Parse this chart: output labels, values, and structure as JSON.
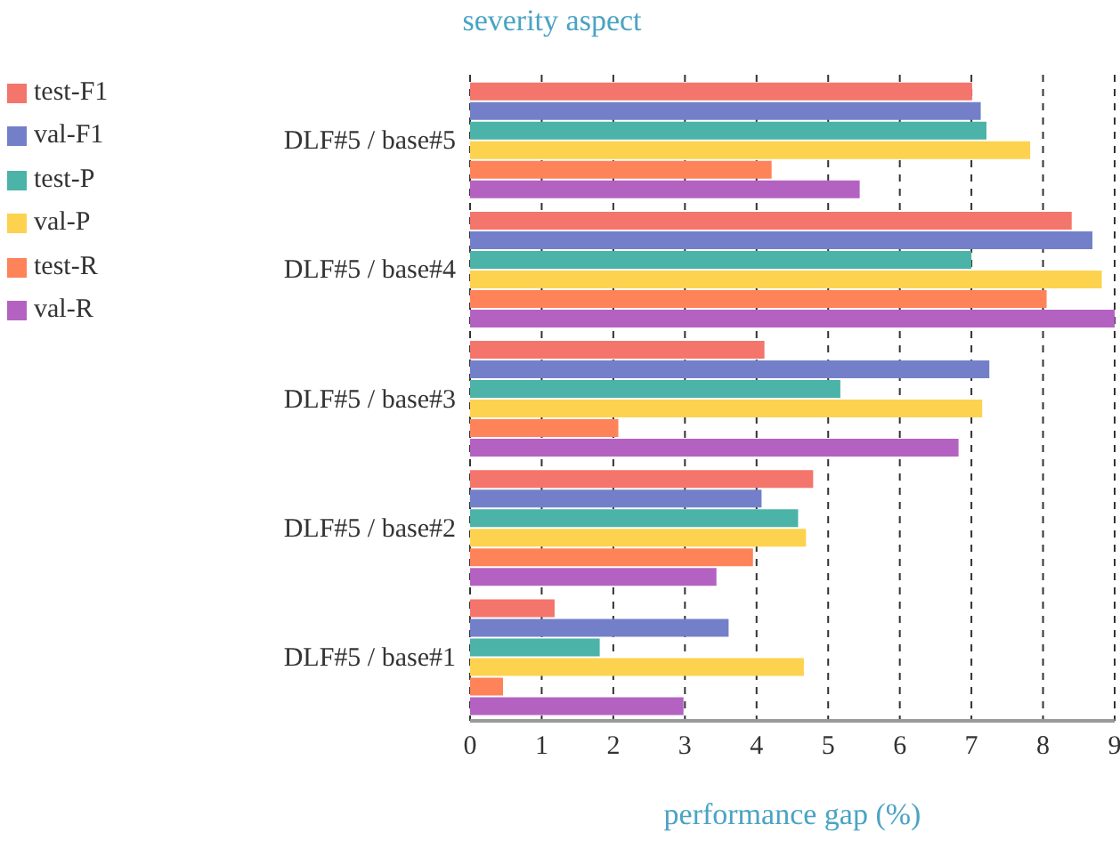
{
  "chart_data": {
    "type": "bar",
    "orientation": "horizontal",
    "title": "severity aspect",
    "xlabel": "performance gap (%)",
    "categories": [
      "DLF#5 / base#5",
      "DLF#5 / base#4",
      "DLF#5 / base#3",
      "DLF#5 / base#2",
      "DLF#5 / base#1"
    ],
    "series": [
      {
        "name": "test-F1",
        "color": "#f4756b",
        "values": [
          7.01,
          8.4,
          4.11,
          4.79,
          1.18
        ]
      },
      {
        "name": "val-F1",
        "color": "#7380c9",
        "values": [
          7.13,
          8.69,
          7.25,
          4.07,
          3.61
        ]
      },
      {
        "name": "test-P",
        "color": "#4bb3a7",
        "values": [
          7.21,
          7.0,
          5.17,
          4.58,
          1.81
        ]
      },
      {
        "name": "val-P",
        "color": "#fdd24e",
        "values": [
          7.82,
          8.82,
          7.15,
          4.69,
          4.66
        ]
      },
      {
        "name": "test-R",
        "color": "#fe8359",
        "values": [
          4.21,
          8.05,
          2.07,
          3.95,
          0.46
        ]
      },
      {
        "name": "val-R",
        "color": "#b462c1",
        "values": [
          5.44,
          9.0,
          6.82,
          3.44,
          2.98
        ]
      }
    ],
    "xlim": [
      0,
      9
    ],
    "xticks": [
      0,
      1,
      2,
      3,
      4,
      5,
      6,
      7,
      8,
      9
    ],
    "grid": "x",
    "legend": "top left"
  }
}
